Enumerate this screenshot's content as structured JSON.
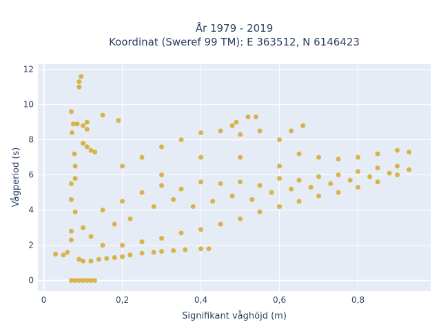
{
  "chart_data": {
    "type": "scatter",
    "title_lines": [
      "År 1979 - 2019",
      "Koordinat (Sweref 99 TM): E 363512, N 6146423"
    ],
    "xlabel": "Signifikant våghöjd (m)",
    "ylabel": "Vågperiod (s)",
    "xlim": [
      -0.015,
      0.985
    ],
    "ylim": [
      -0.6,
      12.3
    ],
    "x_ticks": [
      0,
      0.2,
      0.4,
      0.6,
      0.8
    ],
    "x_tick_labels": [
      "0",
      "0,2",
      "0,4",
      "0,6",
      "0,8"
    ],
    "y_ticks": [
      0,
      2,
      4,
      6,
      8,
      10,
      12
    ],
    "y_tick_labels": [
      "0",
      "2",
      "4",
      "6",
      "8",
      "10",
      "12"
    ],
    "grid": true,
    "series": [
      {
        "color": "#D4A520",
        "points": [
          [
            0.03,
            1.5
          ],
          [
            0.05,
            1.45
          ],
          [
            0.06,
            1.6
          ],
          [
            0.07,
            9.6
          ],
          [
            0.072,
            8.4
          ],
          [
            0.075,
            8.9
          ],
          [
            0.078,
            7.2
          ],
          [
            0.08,
            6.5
          ],
          [
            0.08,
            5.8
          ],
          [
            0.085,
            8.9
          ],
          [
            0.09,
            11.3
          ],
          [
            0.095,
            11.6
          ],
          [
            0.09,
            11.0
          ],
          [
            0.1,
            8.8
          ],
          [
            0.11,
            8.6
          ],
          [
            0.11,
            9.0
          ],
          [
            0.1,
            7.8
          ],
          [
            0.11,
            7.6
          ],
          [
            0.12,
            7.4
          ],
          [
            0.13,
            7.3
          ],
          [
            0.15,
            9.4
          ],
          [
            0.19,
            9.1
          ],
          [
            0.07,
            0.0
          ],
          [
            0.08,
            0.0
          ],
          [
            0.09,
            0.0
          ],
          [
            0.1,
            0.0
          ],
          [
            0.11,
            0.0
          ],
          [
            0.12,
            0.0
          ],
          [
            0.13,
            0.0
          ],
          [
            0.07,
            2.8
          ],
          [
            0.07,
            2.3
          ],
          [
            0.07,
            4.6
          ],
          [
            0.07,
            5.5
          ],
          [
            0.08,
            3.9
          ],
          [
            0.09,
            1.2
          ],
          [
            0.1,
            1.1
          ],
          [
            0.12,
            1.1
          ],
          [
            0.14,
            1.2
          ],
          [
            0.16,
            1.25
          ],
          [
            0.18,
            1.3
          ],
          [
            0.2,
            1.35
          ],
          [
            0.22,
            1.45
          ],
          [
            0.25,
            1.55
          ],
          [
            0.28,
            1.6
          ],
          [
            0.3,
            1.65
          ],
          [
            0.33,
            1.7
          ],
          [
            0.36,
            1.75
          ],
          [
            0.4,
            1.8
          ],
          [
            0.42,
            1.8
          ],
          [
            0.2,
            6.5
          ],
          [
            0.25,
            7.0
          ],
          [
            0.3,
            7.6
          ],
          [
            0.35,
            8.0
          ],
          [
            0.4,
            8.4
          ],
          [
            0.45,
            8.5
          ],
          [
            0.5,
            8.3
          ],
          [
            0.55,
            8.5
          ],
          [
            0.6,
            8.0
          ],
          [
            0.65,
            7.2
          ],
          [
            0.7,
            7.0
          ],
          [
            0.75,
            6.9
          ],
          [
            0.8,
            7.0
          ],
          [
            0.85,
            7.2
          ],
          [
            0.9,
            7.4
          ],
          [
            0.93,
            7.3
          ],
          [
            0.93,
            6.3
          ],
          [
            0.9,
            6.0
          ],
          [
            0.85,
            5.6
          ],
          [
            0.8,
            5.3
          ],
          [
            0.75,
            5.0
          ],
          [
            0.7,
            4.8
          ],
          [
            0.65,
            4.5
          ],
          [
            0.6,
            4.2
          ],
          [
            0.55,
            3.9
          ],
          [
            0.5,
            3.5
          ],
          [
            0.45,
            3.2
          ],
          [
            0.4,
            2.9
          ],
          [
            0.35,
            2.7
          ],
          [
            0.3,
            2.4
          ],
          [
            0.25,
            2.2
          ],
          [
            0.2,
            2.0
          ],
          [
            0.15,
            2.0
          ],
          [
            0.12,
            2.5
          ],
          [
            0.1,
            3.0
          ],
          [
            0.15,
            4.0
          ],
          [
            0.2,
            4.5
          ],
          [
            0.25,
            5.0
          ],
          [
            0.3,
            5.4
          ],
          [
            0.35,
            5.2
          ],
          [
            0.4,
            5.6
          ],
          [
            0.45,
            5.5
          ],
          [
            0.5,
            5.6
          ],
          [
            0.55,
            5.4
          ],
          [
            0.6,
            5.8
          ],
          [
            0.65,
            5.7
          ],
          [
            0.7,
            5.9
          ],
          [
            0.75,
            6.0
          ],
          [
            0.8,
            6.2
          ],
          [
            0.85,
            6.4
          ],
          [
            0.9,
            6.5
          ],
          [
            0.52,
            9.3
          ],
          [
            0.54,
            9.3
          ],
          [
            0.49,
            9.0
          ],
          [
            0.48,
            8.8
          ],
          [
            0.66,
            8.8
          ],
          [
            0.63,
            8.5
          ],
          [
            0.3,
            6.0
          ],
          [
            0.4,
            7.0
          ],
          [
            0.5,
            7.0
          ],
          [
            0.6,
            6.5
          ],
          [
            0.18,
            3.2
          ],
          [
            0.22,
            3.5
          ],
          [
            0.28,
            4.2
          ],
          [
            0.33,
            4.6
          ],
          [
            0.38,
            4.2
          ],
          [
            0.43,
            4.5
          ],
          [
            0.48,
            4.8
          ],
          [
            0.53,
            4.6
          ],
          [
            0.58,
            5.0
          ],
          [
            0.63,
            5.2
          ],
          [
            0.68,
            5.3
          ],
          [
            0.73,
            5.5
          ],
          [
            0.78,
            5.7
          ],
          [
            0.83,
            5.9
          ],
          [
            0.88,
            6.1
          ]
        ]
      }
    ]
  }
}
